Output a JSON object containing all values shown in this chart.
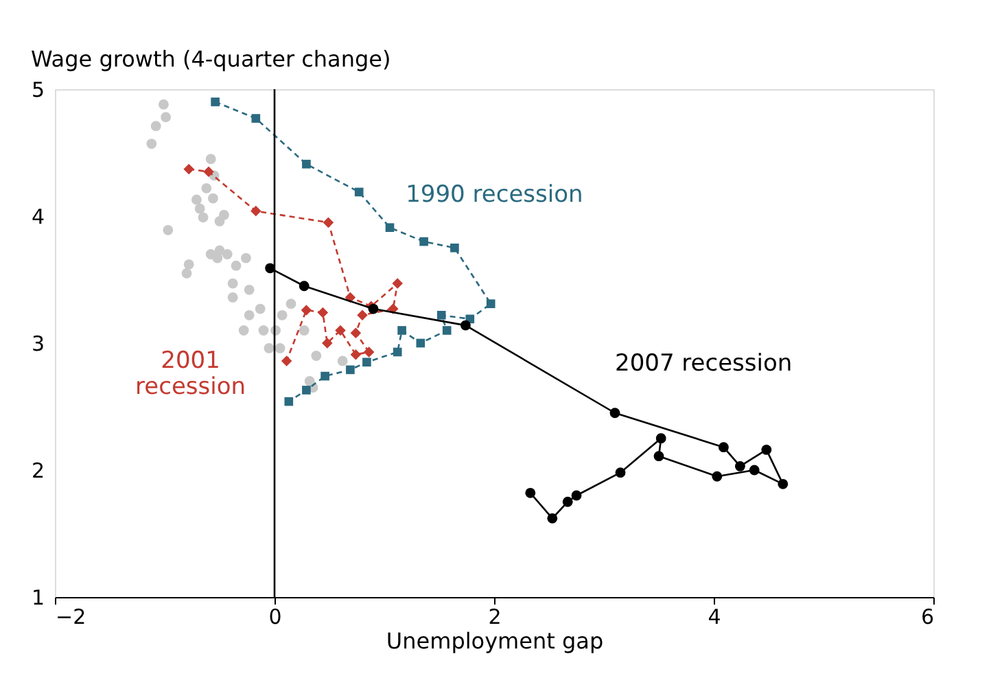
{
  "chart_data": {
    "type": "line",
    "xlabel": "Unemployment gap",
    "ylabel": "Wage growth (4-quarter change)",
    "xlim": [
      -2,
      6
    ],
    "ylim": [
      1,
      5
    ],
    "xticks": [
      -2,
      0,
      2,
      4,
      6
    ],
    "yticks": [
      1,
      2,
      3,
      4,
      5
    ],
    "grid": false,
    "legend": false,
    "ref_lines": [
      {
        "axis": "x",
        "value": 0,
        "color": "#000000"
      }
    ],
    "series": [
      {
        "type": "scatter",
        "marker": "circle",
        "color": "#c8c8c8",
        "x": [
          -1.01,
          -0.99,
          -1.08,
          -1.12,
          -0.58,
          -0.55,
          -0.62,
          -0.71,
          -0.56,
          -0.68,
          -0.65,
          -0.46,
          -0.5,
          -0.97,
          -0.58,
          -0.5,
          -0.43,
          -0.52,
          -0.26,
          -0.78,
          -0.8,
          -0.35,
          -0.38,
          -0.23,
          -0.38,
          0.15,
          -0.13,
          -0.23,
          0.07,
          -0.1,
          -0.28,
          0.01,
          0.27,
          -0.05,
          0.05,
          0.38,
          0.62,
          0.32,
          0.35
        ],
        "values": [
          4.88,
          4.78,
          4.71,
          4.57,
          4.45,
          4.32,
          4.22,
          4.13,
          4.14,
          4.06,
          3.99,
          4.01,
          3.96,
          3.89,
          3.7,
          3.73,
          3.7,
          3.67,
          3.67,
          3.62,
          3.55,
          3.61,
          3.47,
          3.42,
          3.36,
          3.31,
          3.27,
          3.22,
          3.22,
          3.1,
          3.1,
          3.1,
          3.1,
          2.96,
          2.96,
          2.9,
          2.86,
          2.7,
          2.65
        ]
      },
      {
        "name": "1990 recession",
        "marker": "square",
        "line_style": "dashed",
        "color": "#2b6a80",
        "x": [
          -0.54,
          -0.17,
          0.29,
          0.77,
          1.05,
          1.36,
          1.64,
          1.97,
          1.78,
          1.52,
          1.57,
          1.33,
          1.16,
          1.12,
          0.84,
          0.69,
          0.46,
          0.29,
          0.13
        ],
        "values": [
          4.9,
          4.77,
          4.41,
          4.19,
          3.91,
          3.8,
          3.75,
          3.31,
          3.19,
          3.22,
          3.1,
          3.0,
          3.1,
          2.93,
          2.85,
          2.79,
          2.74,
          2.63,
          2.54
        ]
      },
      {
        "name": "2001\nrecession",
        "marker": "diamond",
        "line_style": "dashed",
        "color": "#c43a30",
        "x": [
          -0.78,
          -0.6,
          -0.17,
          0.49,
          0.69,
          0.88,
          1.12,
          1.08,
          0.8,
          0.74,
          0.86,
          0.74,
          0.6,
          0.48,
          0.44,
          0.29,
          0.11
        ],
        "values": [
          4.37,
          4.35,
          4.04,
          3.95,
          3.36,
          3.29,
          3.47,
          3.27,
          3.22,
          3.08,
          2.93,
          2.91,
          3.1,
          3.0,
          3.24,
          3.26,
          2.86
        ]
      },
      {
        "name": "2007 recession",
        "marker": "circle",
        "line_style": "solid",
        "color": "#000000",
        "x": [
          -0.04,
          0.27,
          0.9,
          1.74,
          3.1,
          4.09,
          4.24,
          4.48,
          4.63,
          4.37,
          4.03,
          3.5,
          3.52,
          3.15,
          2.75,
          2.67,
          2.53,
          2.33
        ],
        "values": [
          3.59,
          3.45,
          3.27,
          3.14,
          2.45,
          2.18,
          2.03,
          2.16,
          1.89,
          2.0,
          1.95,
          2.11,
          2.25,
          1.98,
          1.8,
          1.75,
          1.62,
          1.82
        ]
      }
    ]
  }
}
